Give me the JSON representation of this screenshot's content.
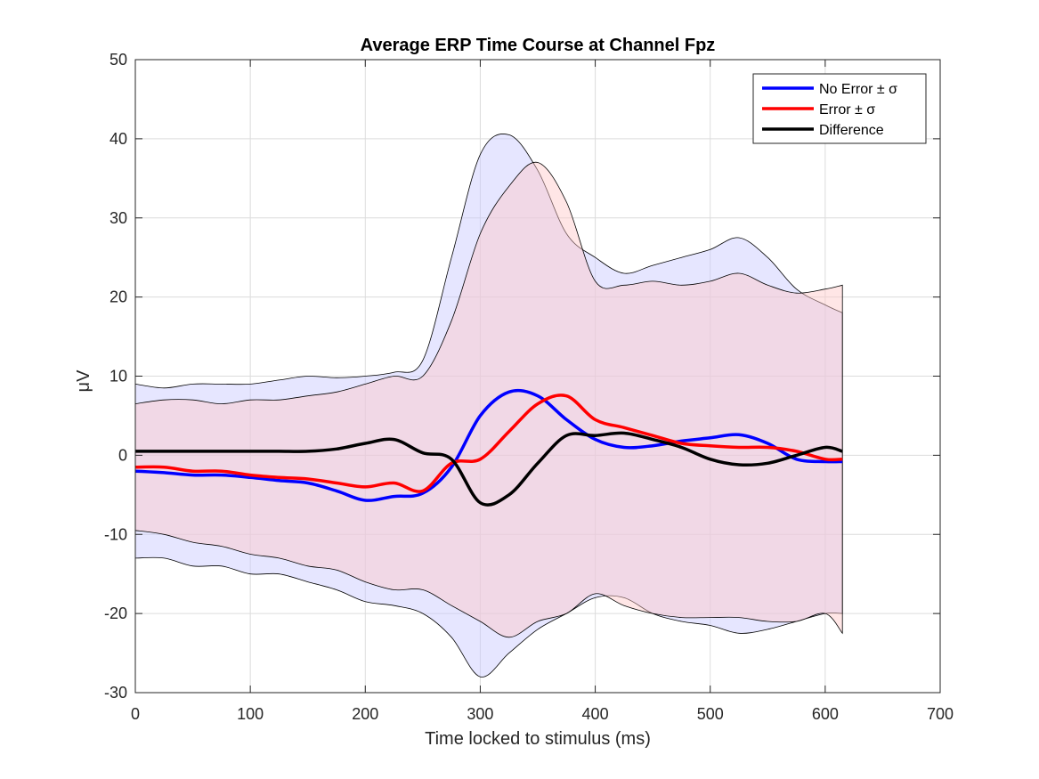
{
  "chart_data": {
    "type": "line",
    "title": "Average ERP Time Course at Channel Fpz",
    "xlabel": "Time locked to stimulus (ms)",
    "ylabel": "μV",
    "xlim": [
      0,
      700
    ],
    "ylim": [
      -30,
      50
    ],
    "xticks": [
      0,
      100,
      200,
      300,
      400,
      500,
      600,
      700
    ],
    "yticks": [
      -30,
      -20,
      -10,
      0,
      10,
      20,
      30,
      40,
      50
    ],
    "grid": true,
    "legend_position": "top-right",
    "x": [
      0,
      25,
      50,
      75,
      100,
      125,
      150,
      175,
      200,
      225,
      250,
      275,
      300,
      325,
      350,
      375,
      400,
      425,
      450,
      475,
      500,
      525,
      550,
      575,
      600,
      615
    ],
    "series": [
      {
        "name": "No Error ± σ",
        "color": "#0000ff",
        "fill_color": "#c8c8ff",
        "values": [
          -2.0,
          -2.2,
          -2.5,
          -2.5,
          -2.8,
          -3.2,
          -3.5,
          -4.5,
          -5.7,
          -5.2,
          -4.8,
          -1.5,
          5.0,
          8.0,
          7.5,
          4.5,
          2.0,
          1.0,
          1.2,
          1.8,
          2.2,
          2.6,
          1.5,
          -0.5,
          -0.8,
          -0.8
        ],
        "upper": [
          9.0,
          8.5,
          9.0,
          9.0,
          9.0,
          9.5,
          10.0,
          9.8,
          10.0,
          10.5,
          12.0,
          25.0,
          38.0,
          40.5,
          36.0,
          28.0,
          25.0,
          23.0,
          24.0,
          25.0,
          26.0,
          27.5,
          25.0,
          21.0,
          19.0,
          18.0
        ],
        "lower": [
          -13.0,
          -13.0,
          -14.0,
          -14.0,
          -15.0,
          -15.0,
          -16.0,
          -17.0,
          -18.5,
          -19.0,
          -20.0,
          -23.0,
          -28.0,
          -25.0,
          -22.0,
          -20.0,
          -18.0,
          -18.0,
          -20.0,
          -21.0,
          -21.5,
          -22.5,
          -22.0,
          -21.0,
          -20.0,
          -20.0
        ]
      },
      {
        "name": "Error ± σ",
        "color": "#ff0000",
        "fill_color": "#ffc8c8",
        "values": [
          -1.5,
          -1.5,
          -2.0,
          -2.0,
          -2.5,
          -2.8,
          -3.0,
          -3.5,
          -4.0,
          -3.5,
          -4.5,
          -1.0,
          -0.5,
          3.0,
          6.5,
          7.5,
          4.5,
          3.5,
          2.5,
          1.5,
          1.2,
          1.0,
          1.0,
          0.5,
          -0.5,
          -0.5
        ],
        "upper": [
          6.5,
          7.0,
          7.0,
          6.5,
          7.0,
          7.0,
          7.5,
          8.0,
          9.0,
          10.0,
          10.0,
          17.0,
          28.0,
          34.0,
          37.0,
          32.0,
          22.0,
          21.5,
          22.0,
          21.5,
          22.0,
          23.0,
          21.5,
          20.5,
          21.0,
          21.5
        ],
        "lower": [
          -9.5,
          -10.0,
          -11.0,
          -11.5,
          -12.5,
          -13.0,
          -14.0,
          -14.5,
          -16.0,
          -17.0,
          -17.0,
          -19.0,
          -21.0,
          -23.0,
          -21.0,
          -20.0,
          -17.5,
          -19.0,
          -20.0,
          -20.5,
          -20.5,
          -20.5,
          -21.0,
          -21.0,
          -20.0,
          -22.5
        ]
      },
      {
        "name": "Difference",
        "color": "#000000",
        "values": [
          0.5,
          0.5,
          0.5,
          0.5,
          0.5,
          0.5,
          0.5,
          0.8,
          1.5,
          2.0,
          0.3,
          -0.5,
          -6.0,
          -5.0,
          -1.0,
          2.5,
          2.5,
          2.8,
          2.0,
          1.0,
          -0.5,
          -1.2,
          -1.0,
          0.0,
          1.0,
          0.5
        ]
      }
    ]
  }
}
